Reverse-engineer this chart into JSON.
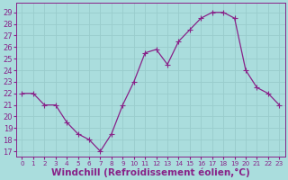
{
  "x": [
    0,
    1,
    2,
    3,
    4,
    5,
    6,
    7,
    8,
    9,
    10,
    11,
    12,
    13,
    14,
    15,
    16,
    17,
    18,
    19,
    20,
    21,
    22,
    23
  ],
  "y": [
    22,
    22,
    21,
    21,
    19.5,
    18.5,
    18,
    17,
    18.5,
    21,
    23,
    25.5,
    25.8,
    24.5,
    26.5,
    27.5,
    28.5,
    29,
    29,
    28.5,
    24,
    22.5,
    22,
    21
  ],
  "line_color": "#882288",
  "marker": "+",
  "marker_size": 4,
  "marker_lw": 0.8,
  "background_color": "#aadddd",
  "grid_color": "#99cccc",
  "xlabel": "Windchill (Refroidissement éolien,°C)",
  "xlabel_fontsize": 7.5,
  "ylim": [
    16.5,
    29.8
  ],
  "xlim": [
    -0.5,
    23.5
  ],
  "yticks": [
    17,
    18,
    19,
    20,
    21,
    22,
    23,
    24,
    25,
    26,
    27,
    28,
    29
  ],
  "xticks": [
    0,
    1,
    2,
    3,
    4,
    5,
    6,
    7,
    8,
    9,
    10,
    11,
    12,
    13,
    14,
    15,
    16,
    17,
    18,
    19,
    20,
    21,
    22,
    23
  ],
  "tick_color": "#882288",
  "ytick_fontsize": 6.0,
  "xtick_fontsize": 5.2,
  "line_width": 0.9,
  "spine_color": "#882288"
}
